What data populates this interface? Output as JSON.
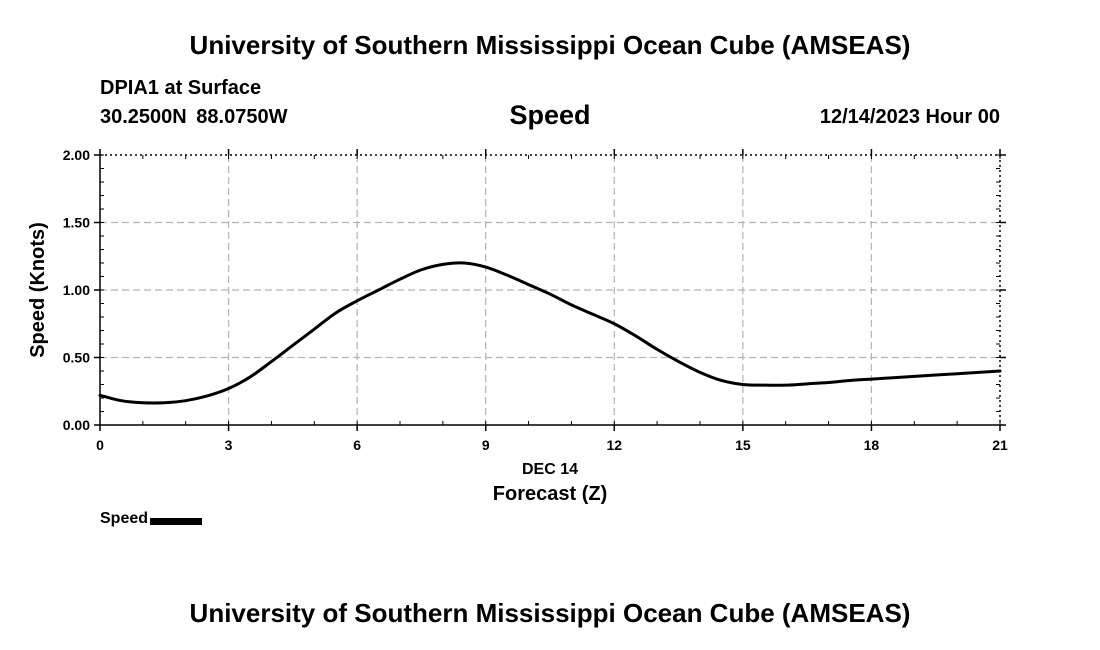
{
  "header": {
    "title": "University of Southern Mississippi Ocean Cube (AMSEAS)",
    "station": "DPIA1 at Surface",
    "coords": "30.2500N  88.0750W",
    "variable": "Speed",
    "datetime": "12/14/2023 Hour 00"
  },
  "footer": {
    "title": "University of Southern Mississippi Ocean Cube (AMSEAS)"
  },
  "legend": {
    "label": "Speed"
  },
  "chart_data": {
    "type": "line",
    "title": "Speed",
    "xlabel": "Forecast (Z)",
    "xlabel_date": "DEC 14",
    "ylabel": "Speed (Knots)",
    "xlim": [
      0,
      21
    ],
    "ylim": [
      0,
      2
    ],
    "x_ticks": [
      0,
      3,
      6,
      9,
      12,
      15,
      18,
      21
    ],
    "x_tick_labels": [
      "0",
      "3",
      "6",
      "9",
      "12",
      "15",
      "18",
      "21"
    ],
    "y_ticks": [
      0,
      0.5,
      1,
      1.5,
      2
    ],
    "y_tick_labels": [
      "0.00",
      "0.50",
      "1.00",
      "1.50",
      "2.00"
    ],
    "grid": true,
    "legend_position": "bottom-left",
    "series": [
      {
        "name": "Speed",
        "color": "#000000",
        "x": [
          0,
          0.5,
          1,
          1.5,
          2,
          2.5,
          3,
          3.5,
          4,
          4.5,
          5,
          5.5,
          6,
          6.5,
          7,
          7.5,
          8,
          8.5,
          9,
          9.5,
          10,
          10.5,
          11,
          11.5,
          12,
          12.5,
          13,
          13.5,
          14,
          14.5,
          15,
          15.5,
          16,
          16.5,
          17,
          17.5,
          18,
          18.5,
          19,
          19.5,
          20,
          20.5,
          21
        ],
        "values": [
          0.22,
          0.18,
          0.165,
          0.165,
          0.18,
          0.215,
          0.27,
          0.355,
          0.47,
          0.59,
          0.71,
          0.83,
          0.92,
          1.0,
          1.08,
          1.15,
          1.19,
          1.2,
          1.17,
          1.11,
          1.04,
          0.97,
          0.89,
          0.82,
          0.75,
          0.66,
          0.56,
          0.47,
          0.39,
          0.33,
          0.3,
          0.295,
          0.295,
          0.305,
          0.315,
          0.33,
          0.34,
          0.35,
          0.36,
          0.37,
          0.38,
          0.39,
          0.4
        ]
      }
    ]
  }
}
